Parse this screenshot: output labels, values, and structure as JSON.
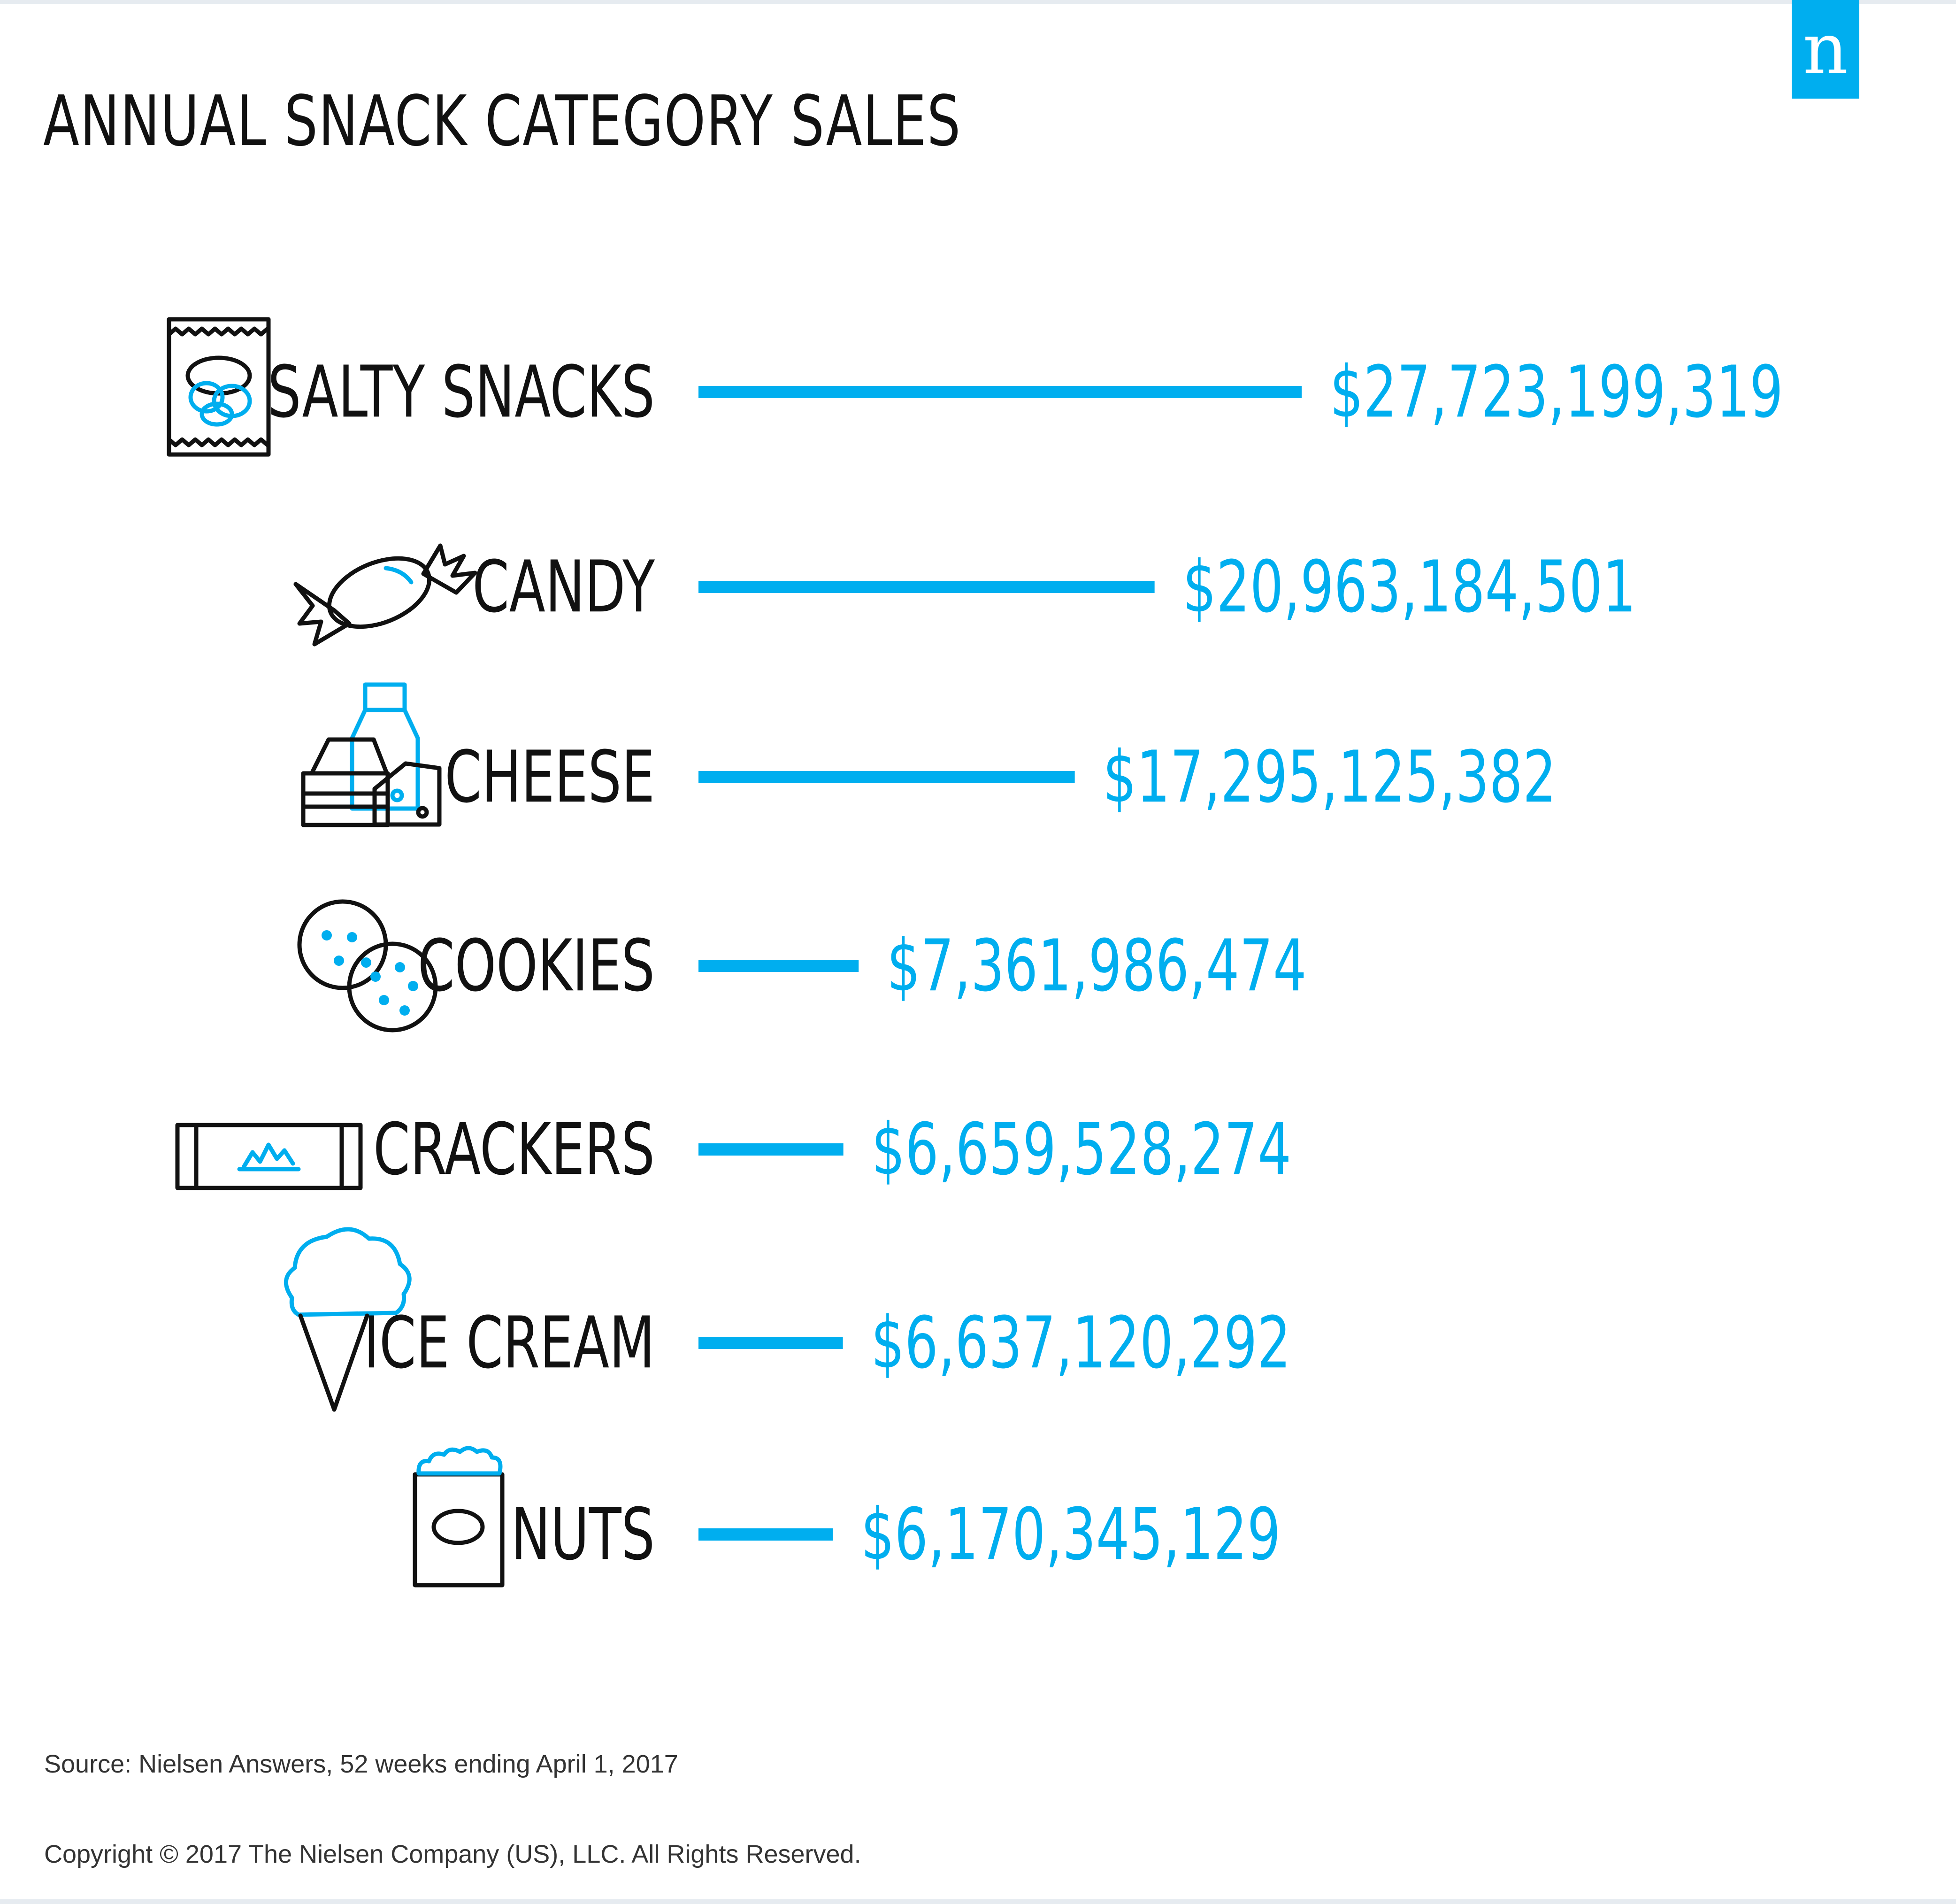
{
  "brand": {
    "logo_letter": "n",
    "accent_color": "#00aeef",
    "ink_color": "#111111",
    "frame_color": "#e6ebf0"
  },
  "title": "ANNUAL SNACK CATEGORY SALES",
  "chart_data": {
    "type": "bar",
    "orientation": "horizontal",
    "title": "ANNUAL SNACK CATEGORY SALES",
    "categories": [
      "SALTY SNACKS",
      "CANDY",
      "CHEESE",
      "COOKIES",
      "CRACKERS",
      "ICE CREAM",
      "NUTS"
    ],
    "values": [
      27723199319,
      20963184501,
      17295125382,
      7361986474,
      6659528274,
      6637120292,
      6170345129
    ],
    "value_labels": [
      "$27,723,199,319",
      "$20,963,184,501",
      "$17,295,125,382",
      "$7,361,986,474",
      "$6,659,528,274",
      "$6,637,120,292",
      "$6,170,345,129"
    ],
    "icons": [
      "chip-bag-icon",
      "candy-icon",
      "dairy-icon",
      "cookies-icon",
      "cracker-package-icon",
      "ice-cream-icon",
      "nuts-bag-icon"
    ],
    "grid": false,
    "legend": "none"
  },
  "footer": {
    "source": "Source: Nielsen Answers, 52 weeks ending April 1, 2017",
    "copyright": "Copyright © 2017 The Nielsen Company (US), LLC. All Rights Reserved."
  }
}
